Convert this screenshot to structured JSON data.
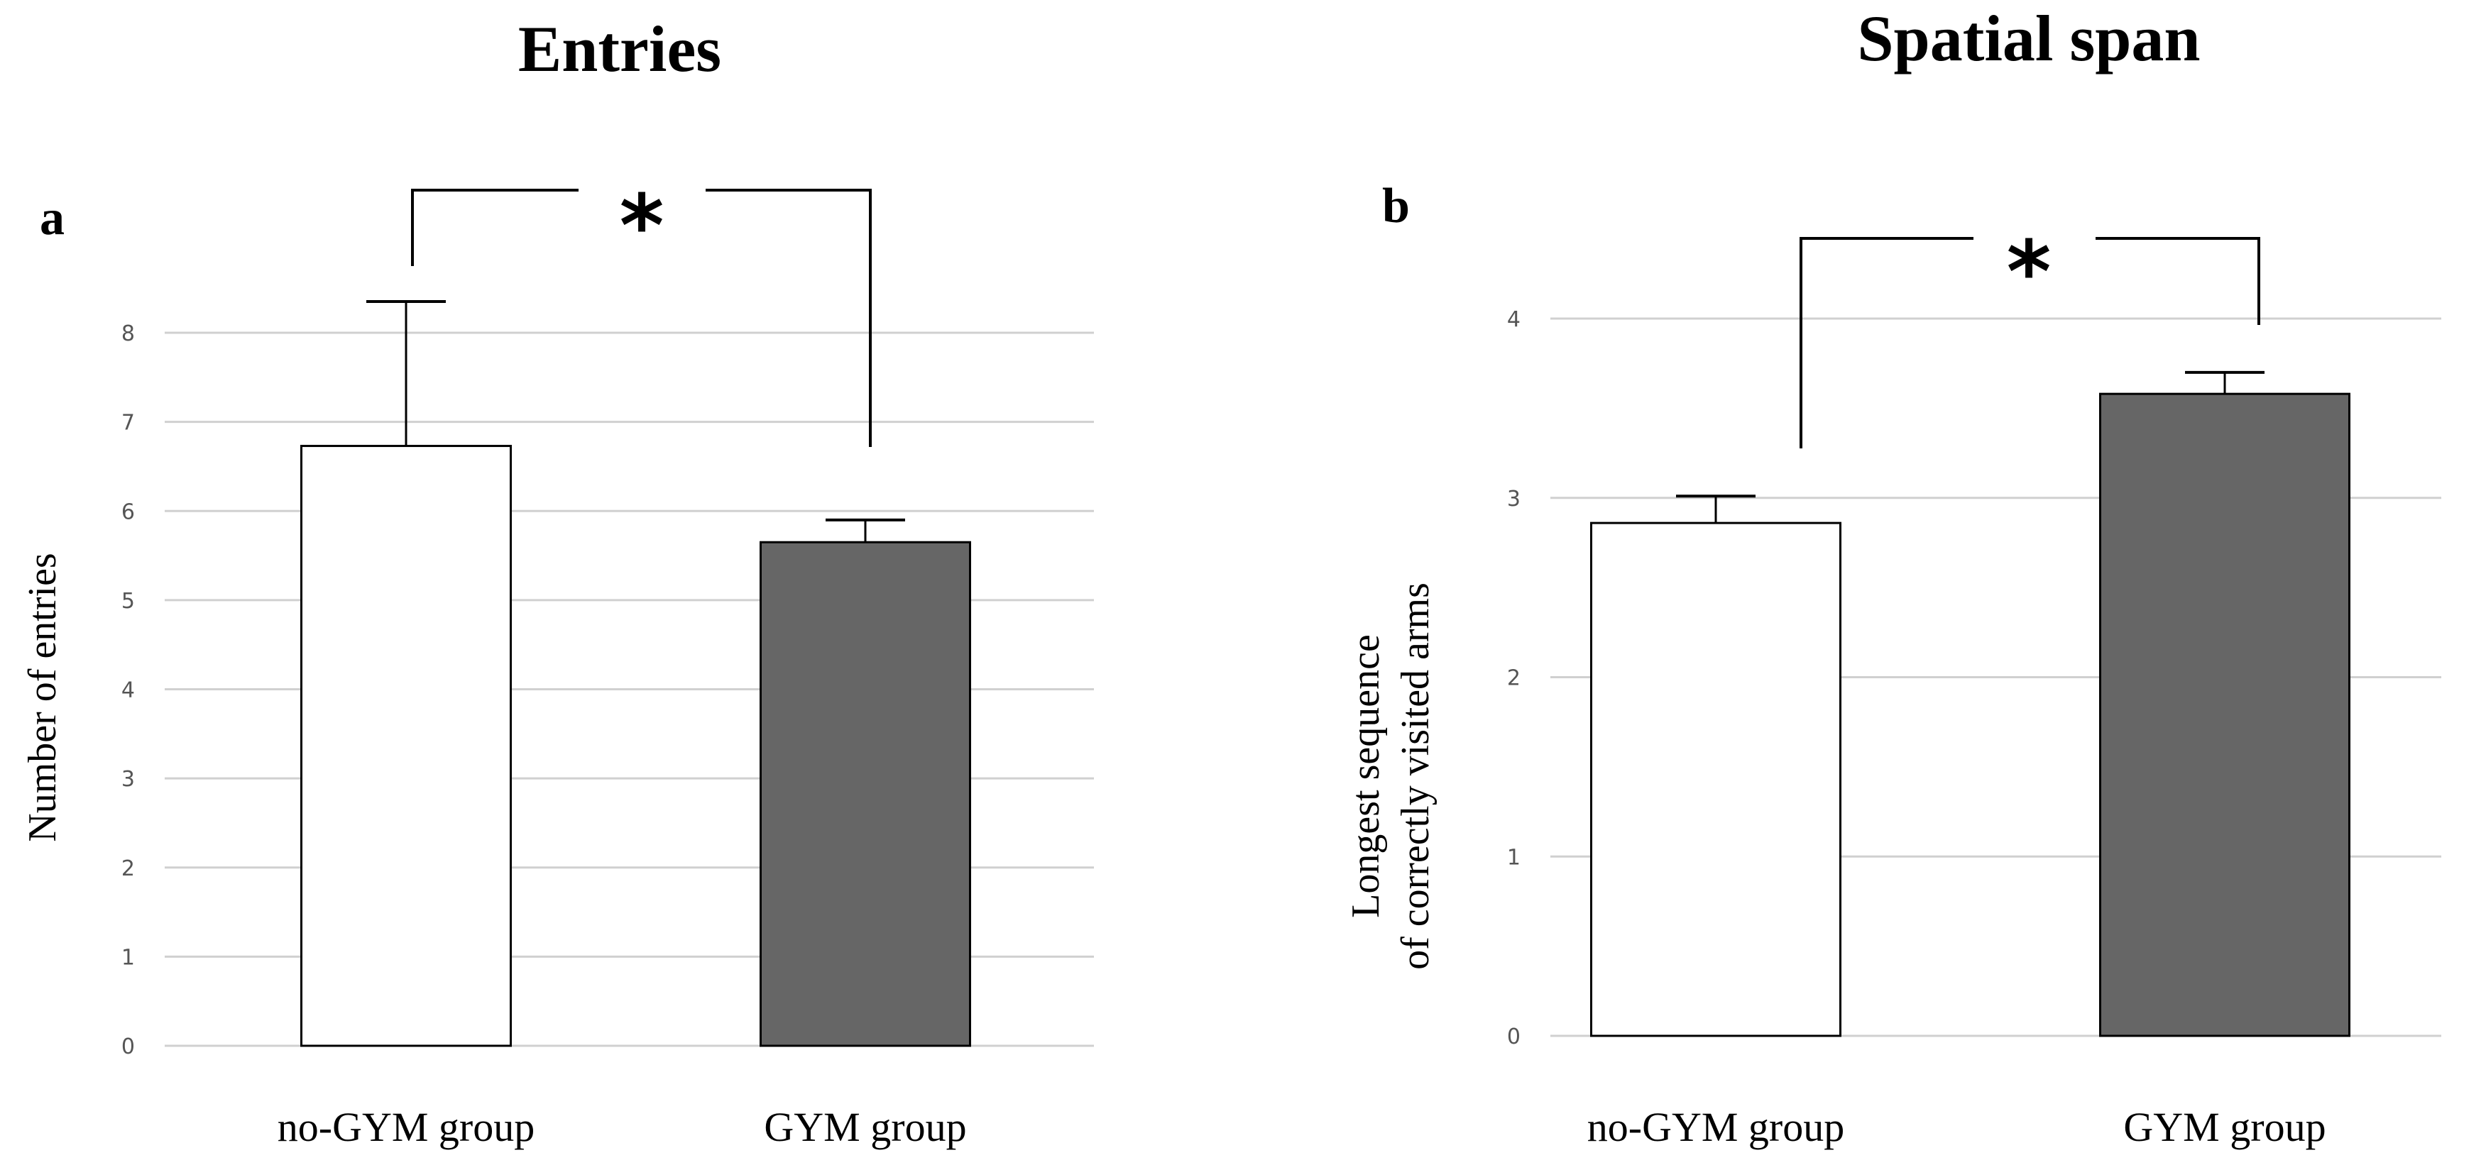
{
  "chart_data": [
    {
      "type": "bar",
      "panel": "a",
      "title": "Entries",
      "xlabel": "",
      "ylabel": "Number of entries",
      "categories": [
        "no-GYM group",
        "GYM group"
      ],
      "values": [
        6.73,
        5.65
      ],
      "error": [
        1.62,
        0.25
      ],
      "colors": [
        "#ffffff",
        "#666666"
      ],
      "yticks": [
        "0",
        "1",
        "2",
        "3",
        "4",
        "5",
        "6",
        "7",
        "8"
      ],
      "ylim": [
        0,
        8
      ],
      "grid": true,
      "significance": "*"
    },
    {
      "type": "bar",
      "panel": "b",
      "title": "Spatial span",
      "xlabel": "",
      "ylabel": [
        "Longest sequence",
        "of correctly visited  arms"
      ],
      "categories": [
        "no-GYM group",
        "GYM group"
      ],
      "values": [
        2.86,
        3.58
      ],
      "error": [
        0.15,
        0.12
      ],
      "colors": [
        "#ffffff",
        "#666666"
      ],
      "yticks": [
        "0",
        "1",
        "2",
        "3",
        "4"
      ],
      "ylim": [
        0,
        4
      ],
      "grid": true,
      "significance": "*"
    }
  ]
}
